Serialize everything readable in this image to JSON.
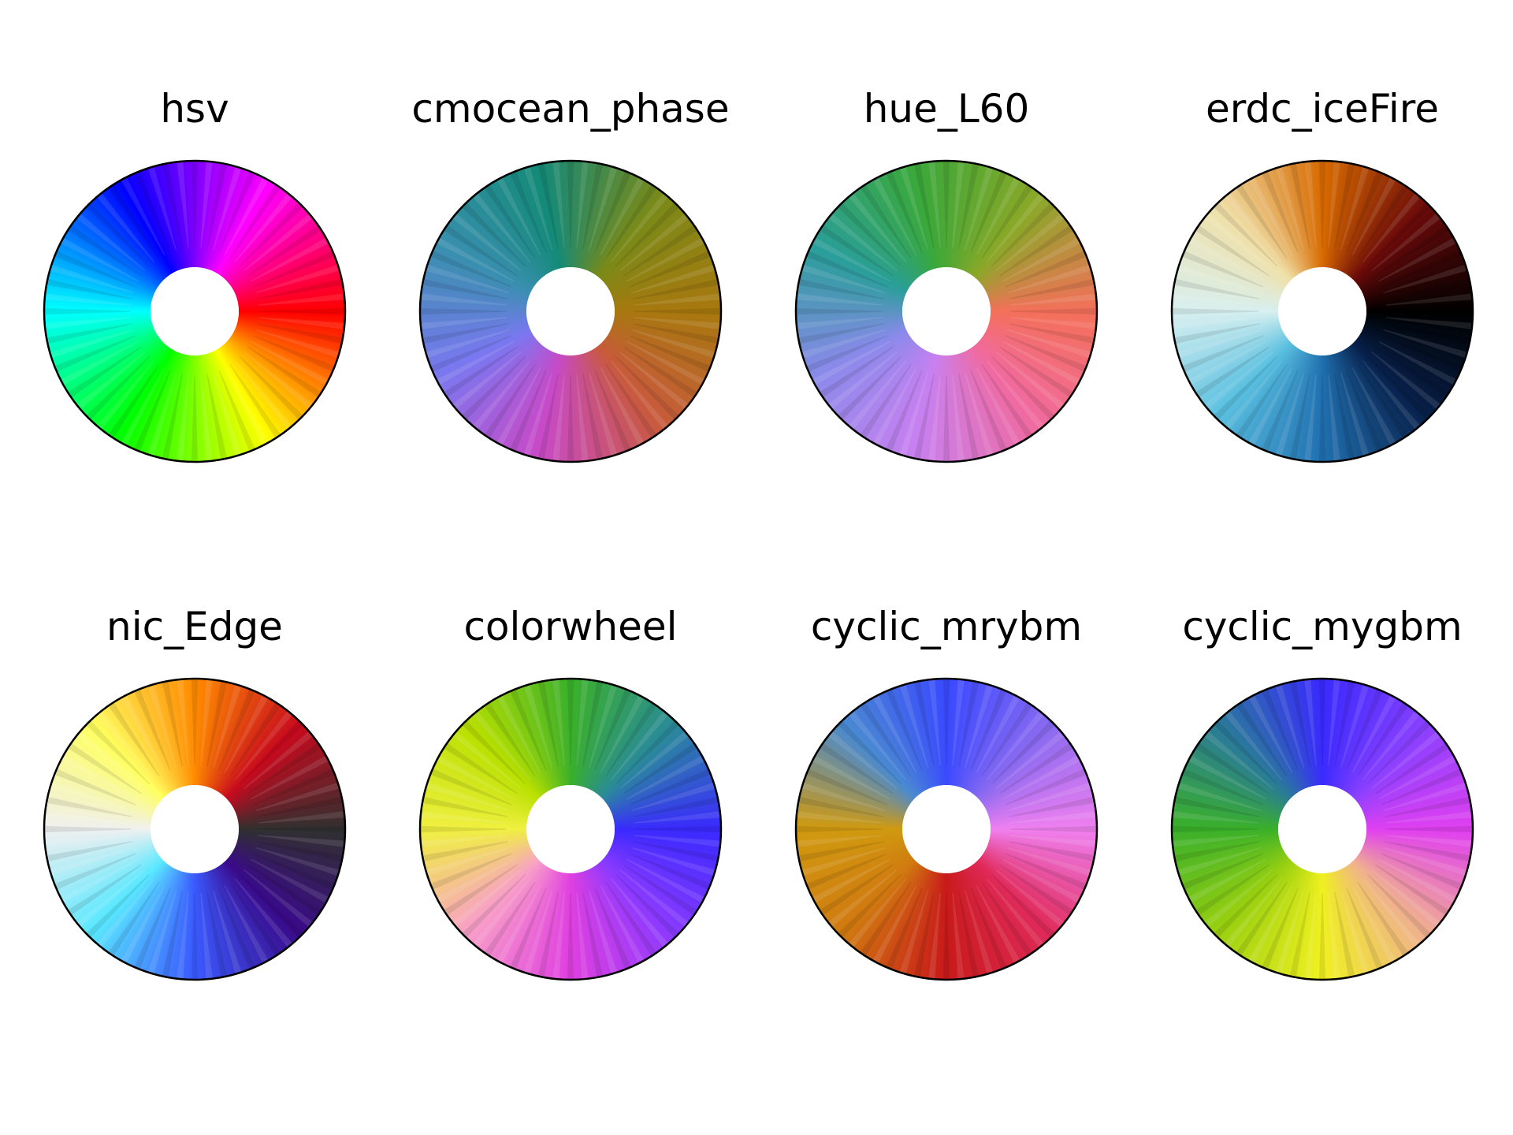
{
  "chart_data": [
    {
      "type": "colorwheel",
      "title": "hsv",
      "colors": [
        "#ff0000",
        "#ff00ff",
        "#0000ff",
        "#00ffff",
        "#00ff00",
        "#ffff00",
        "#ff0000"
      ]
    },
    {
      "type": "colorwheel",
      "title": "cmocean_phase",
      "colors": [
        "#a8780f",
        "#7a8a18",
        "#148a78",
        "#3a8fb0",
        "#7a78f0",
        "#c84ac8",
        "#c85a3c",
        "#a8780f"
      ]
    },
    {
      "type": "colorwheel",
      "title": "hue_L60",
      "colors": [
        "#f4705a",
        "#8aa828",
        "#3aa83a",
        "#2a9e9a",
        "#8a8aea",
        "#c880f0",
        "#f06aa0",
        "#f4705a"
      ]
    },
    {
      "type": "colorwheel",
      "title": "erdc_iceFire",
      "colors": [
        "#000000",
        "#6a0a0a",
        "#d86a00",
        "#f0e0a8",
        "#d8f0f0",
        "#5ac0e0",
        "#2070b0",
        "#08204a",
        "#000000"
      ]
    },
    {
      "type": "colorwheel",
      "title": "nic_Edge",
      "colors": [
        "#303030",
        "#c80a1e",
        "#ff8a00",
        "#ffff60",
        "#f0f0f0",
        "#5ae8ff",
        "#3a5aff",
        "#3a0a8a",
        "#303030"
      ]
    },
    {
      "type": "colorwheel",
      "title": "colorwheel",
      "colors": [
        "#3a2aff",
        "#2a8a9a",
        "#3ab02a",
        "#b8e000",
        "#f0f040",
        "#f8a0c8",
        "#e040e0",
        "#8a3aff",
        "#3a2aff"
      ]
    },
    {
      "type": "colorwheel",
      "title": "cyclic_mrybm",
      "colors": [
        "#f080f0",
        "#8a6af0",
        "#3a4aff",
        "#4a8ad0",
        "#d09a10",
        "#d07a10",
        "#c81a1a",
        "#e02a5a",
        "#f080f0"
      ]
    },
    {
      "type": "colorwheel",
      "title": "cyclic_mygbm",
      "colors": [
        "#e040f0",
        "#8a40ff",
        "#3a2aff",
        "#2a7a9a",
        "#3ab02a",
        "#9ad010",
        "#f0f020",
        "#f0b090",
        "#e040f0"
      ]
    }
  ]
}
